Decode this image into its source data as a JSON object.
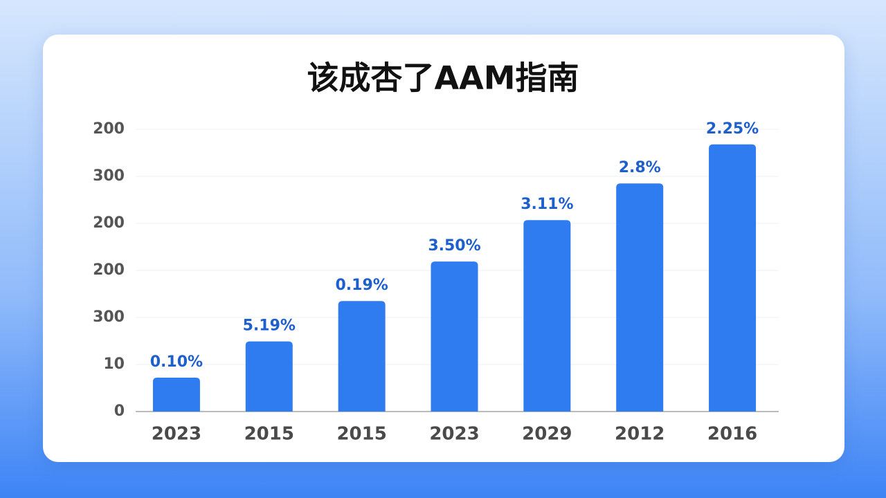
{
  "chart_data": {
    "type": "bar",
    "title": "该成杏了AAM指南",
    "categories": [
      "2023",
      "2015",
      "2015",
      "2023",
      "2029",
      "2012",
      "2016"
    ],
    "values": [
      0.72,
      1.49,
      2.35,
      3.19,
      4.07,
      4.85,
      5.68
    ],
    "bar_labels": [
      "0.10%",
      "5.19%",
      "0.19%",
      "3.50%",
      "3.11%",
      "2.8%",
      "2.25%"
    ],
    "color": "#2f7bf0",
    "ylim": [
      0,
      6
    ],
    "yticks": [
      {
        "value": 0,
        "label": "0"
      },
      {
        "value": 1,
        "label": "10"
      },
      {
        "value": 2,
        "label": "300"
      },
      {
        "value": 3,
        "label": "200"
      },
      {
        "value": 4,
        "label": "200"
      },
      {
        "value": 5,
        "label": "300"
      },
      {
        "value": 6,
        "label": "200"
      }
    ],
    "grid": true
  }
}
